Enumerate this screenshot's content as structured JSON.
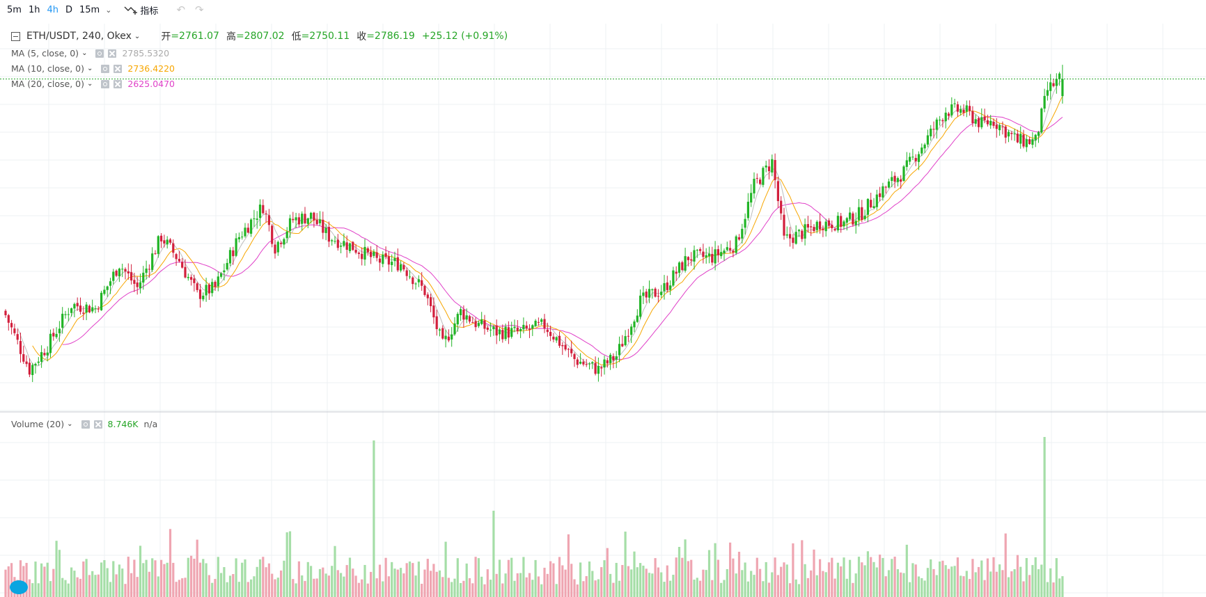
{
  "toolbar": {
    "intervals": [
      "5m",
      "1h",
      "4h",
      "D",
      "15m"
    ],
    "active_interval": "4h",
    "indicators_label": "指标"
  },
  "legend": {
    "symbol": "ETH/USDT, 240, Okex",
    "ohlc": {
      "open_label": "开",
      "open": "=2761.07",
      "high_label": "高",
      "high": "=2807.02",
      "low_label": "低",
      "low": "=2750.11",
      "close_label": "收",
      "close": "=2786.19",
      "change": "+25.12 (+0.91%)"
    },
    "ma": [
      {
        "label": "MA (5, close, 0)",
        "value": "2785.5320",
        "color": "#bdbdbd"
      },
      {
        "label": "MA (10, close, 0)",
        "value": "2736.4220",
        "color": "#f7a600"
      },
      {
        "label": "MA (20, close, 0)",
        "value": "2625.0470",
        "color": "#e040c8"
      }
    ],
    "volume": {
      "label": "Volume (20)",
      "value": "8.746K",
      "na": "n/a"
    }
  },
  "colors": {
    "up": "#21b426",
    "down": "#d21f3c",
    "vol_up": "#a5dea7",
    "vol_down": "#efa5b1",
    "grid": "#eef0f3",
    "last_price_line": "#27a52a"
  },
  "chart_data": [
    {
      "type": "candlestick",
      "symbol": "ETH/USDT",
      "interval": "240",
      "exchange": "Okex",
      "last": {
        "open": 2761.07,
        "high": 2807.02,
        "low": 2750.11,
        "close": 2786.19
      },
      "approx_close_path": [
        [
          0,
          2440
        ],
        [
          8,
          2360
        ],
        [
          14,
          2395
        ],
        [
          22,
          2455
        ],
        [
          30,
          2450
        ],
        [
          38,
          2515
        ],
        [
          44,
          2480
        ],
        [
          52,
          2555
        ],
        [
          58,
          2520
        ],
        [
          64,
          2470
        ],
        [
          70,
          2480
        ],
        [
          78,
          2555
        ],
        [
          86,
          2600
        ],
        [
          90,
          2540
        ],
        [
          96,
          2580
        ],
        [
          102,
          2585
        ],
        [
          108,
          2555
        ],
        [
          116,
          2540
        ],
        [
          124,
          2520
        ],
        [
          132,
          2515
        ],
        [
          140,
          2475
        ],
        [
          146,
          2395
        ],
        [
          152,
          2445
        ],
        [
          158,
          2425
        ],
        [
          164,
          2415
        ],
        [
          172,
          2415
        ],
        [
          180,
          2425
        ],
        [
          190,
          2375
        ],
        [
          198,
          2360
        ],
        [
          204,
          2380
        ],
        [
          212,
          2460
        ],
        [
          220,
          2480
        ],
        [
          228,
          2525
        ],
        [
          236,
          2525
        ],
        [
          244,
          2545
        ],
        [
          250,
          2630
        ],
        [
          256,
          2665
        ],
        [
          260,
          2550
        ],
        [
          266,
          2560
        ],
        [
          272,
          2575
        ],
        [
          280,
          2575
        ],
        [
          286,
          2590
        ],
        [
          292,
          2620
        ],
        [
          300,
          2650
        ],
        [
          308,
          2700
        ],
        [
          314,
          2740
        ],
        [
          320,
          2740
        ],
        [
          326,
          2720
        ],
        [
          330,
          2725
        ],
        [
          338,
          2695
        ],
        [
          344,
          2695
        ],
        [
          348,
          2770
        ],
        [
          353,
          2790
        ]
      ],
      "moving_averages": [
        {
          "name": "MA (5, close, 0)",
          "last": 2785.532
        },
        {
          "name": "MA (10, close, 0)",
          "last": 2736.422
        },
        {
          "name": "MA (20, close, 0)",
          "last": 2625.047
        }
      ]
    },
    {
      "type": "bar",
      "title": "Volume (20)",
      "last": "8.746K"
    }
  ]
}
